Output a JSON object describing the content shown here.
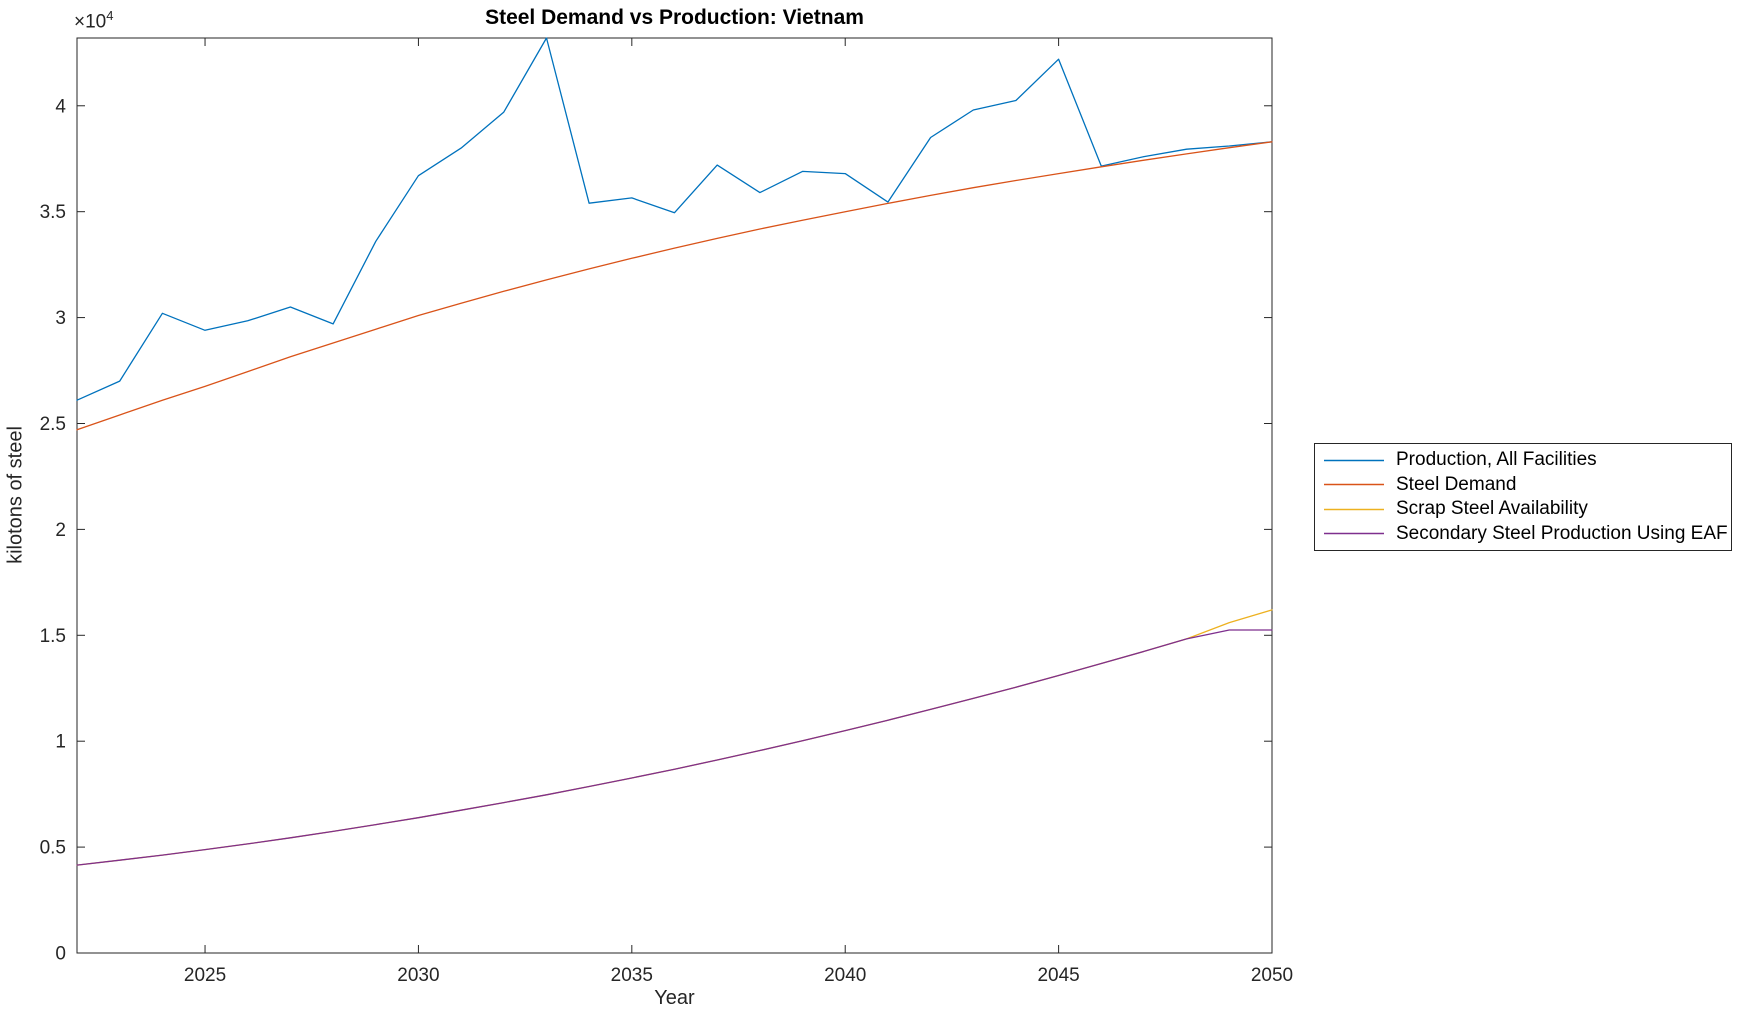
{
  "figure": {
    "y_multiplier_base": "×10",
    "y_multiplier_exp": "4",
    "background_color": "#ffffff",
    "axis_color": "#262626",
    "title_color": "#000000"
  },
  "chart_data": {
    "type": "line",
    "title": "Steel Demand vs Production: Vietnam",
    "xlabel": "Year",
    "ylabel": "kilotons of steel",
    "y_axis_multiplier": "×10^4",
    "xlim": [
      2022,
      2050
    ],
    "ylim": [
      0,
      43200
    ],
    "xticks": [
      "2025",
      "2030",
      "2035",
      "2040",
      "2045",
      "2050"
    ],
    "yticks": [
      {
        "value": 0,
        "label": "0"
      },
      {
        "value": 5000,
        "label": "0.5"
      },
      {
        "value": 10000,
        "label": "1"
      },
      {
        "value": 15000,
        "label": "1.5"
      },
      {
        "value": 20000,
        "label": "2"
      },
      {
        "value": 25000,
        "label": "2.5"
      },
      {
        "value": 30000,
        "label": "3"
      },
      {
        "value": 35000,
        "label": "3.5"
      },
      {
        "value": 40000,
        "label": "4"
      }
    ],
    "grid": false,
    "legend_position": "outside-right",
    "x": [
      2022,
      2023,
      2024,
      2025,
      2026,
      2027,
      2028,
      2029,
      2030,
      2031,
      2032,
      2033,
      2034,
      2035,
      2036,
      2037,
      2038,
      2039,
      2040,
      2041,
      2042,
      2043,
      2044,
      2045,
      2046,
      2047,
      2048,
      2049,
      2050
    ],
    "series": [
      {
        "name": "Production, All Facilities",
        "color": "#0072BD",
        "values": [
          26100,
          27000,
          30200,
          29400,
          29850,
          30500,
          29700,
          33600,
          36700,
          38000,
          39700,
          43200,
          35400,
          35650,
          34950,
          37200,
          35900,
          36900,
          36800,
          35450,
          38500,
          39800,
          40250,
          42200,
          37150,
          37600,
          37950,
          38100,
          38300
        ]
      },
      {
        "name": "Steel Demand",
        "color": "#D95319",
        "values": [
          24700,
          25400,
          26100,
          26750,
          27450,
          28150,
          28800,
          29450,
          30100,
          30680,
          31240,
          31780,
          32300,
          32800,
          33280,
          33740,
          34180,
          34600,
          35000,
          35390,
          35770,
          36130,
          36470,
          36800,
          37120,
          37430,
          37730,
          38020,
          38300
        ]
      },
      {
        "name": "Scrap Steel Availability",
        "color": "#EDB120",
        "values": [
          4150,
          4380,
          4620,
          4880,
          5150,
          5440,
          5740,
          6060,
          6390,
          6740,
          7100,
          7470,
          7860,
          8260,
          8680,
          9110,
          9560,
          10020,
          10500,
          10990,
          11500,
          12020,
          12550,
          13100,
          13670,
          14240,
          14830,
          15600,
          16200
        ]
      },
      {
        "name": "Secondary Steel Production Using EAF",
        "color": "#7E2F8E",
        "values": [
          4150,
          4380,
          4620,
          4880,
          5150,
          5440,
          5740,
          6060,
          6390,
          6740,
          7100,
          7470,
          7860,
          8260,
          8680,
          9110,
          9560,
          10020,
          10500,
          10990,
          11500,
          12020,
          12550,
          13100,
          13670,
          14240,
          14830,
          15250,
          15250
        ]
      }
    ]
  }
}
